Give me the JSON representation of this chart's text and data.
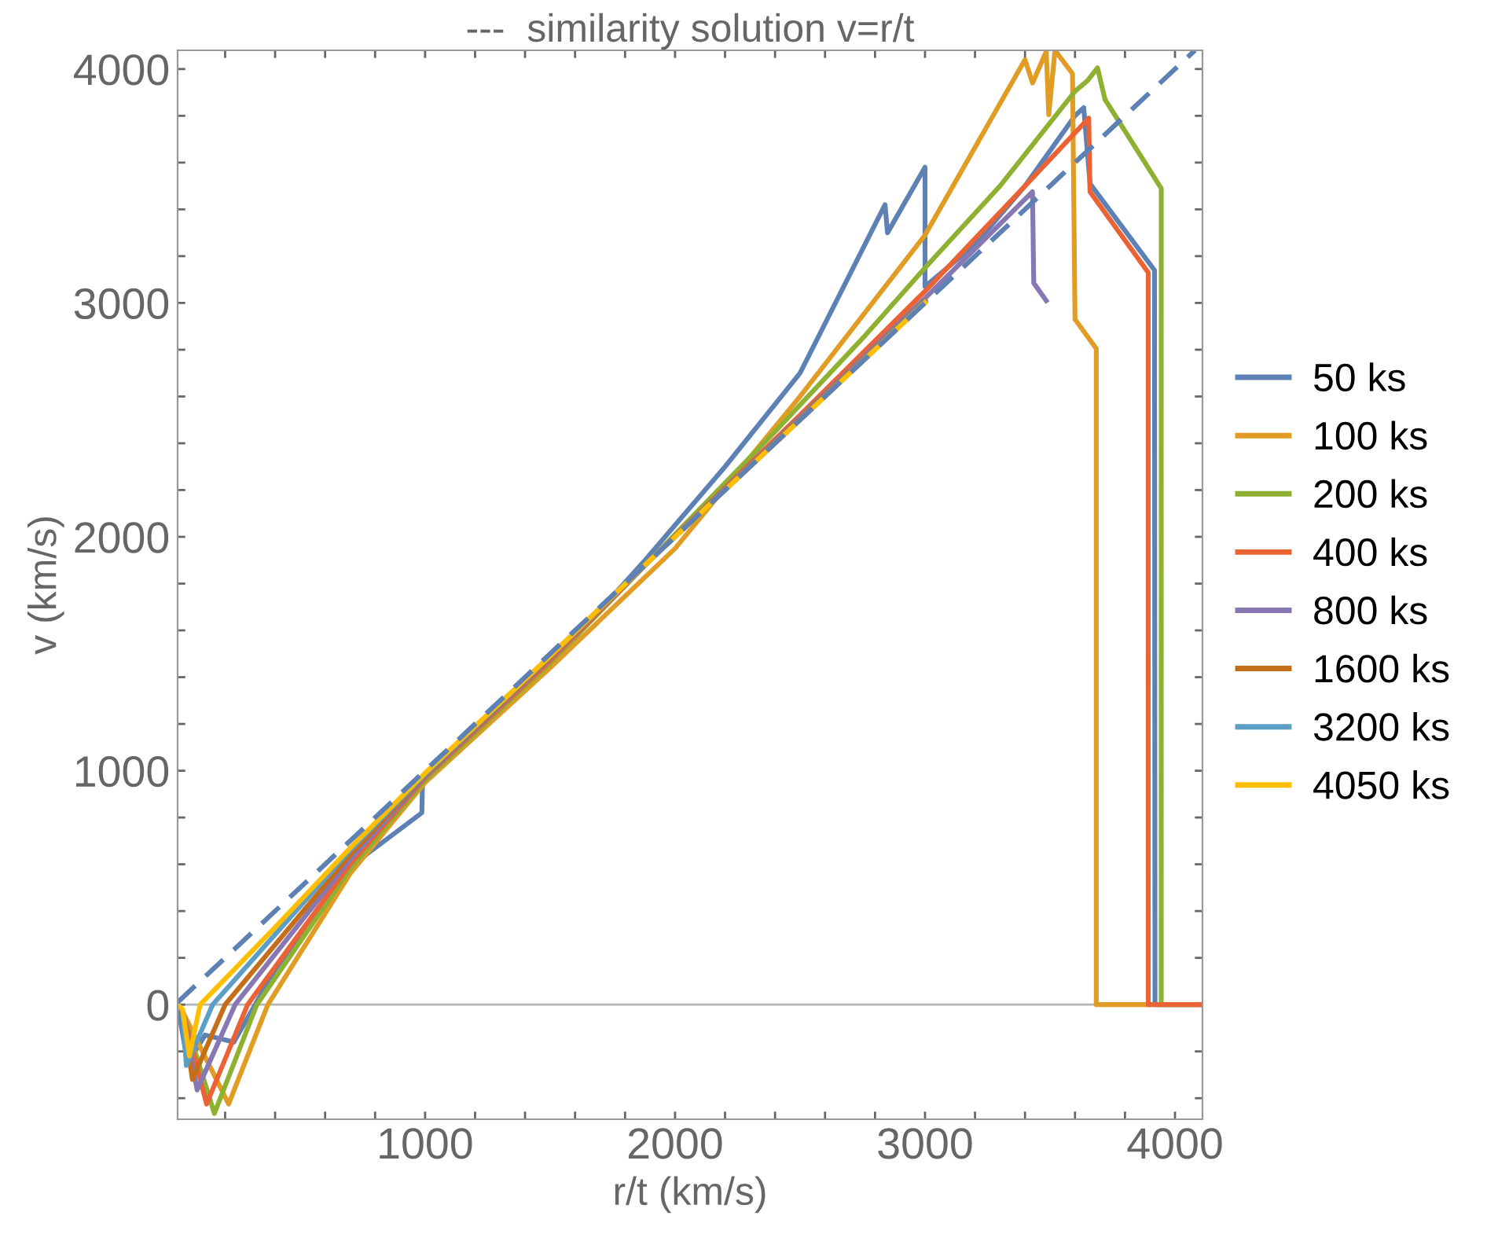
{
  "chart_data": {
    "type": "line",
    "title": "---  similarity solution v=r/t",
    "xlabel": "r/t (km/s)",
    "ylabel": "v (km/s)",
    "xlim": [
      10,
      4110
    ],
    "ylim": [
      -490,
      4080
    ],
    "xticks": [
      {
        "value": 200,
        "label": null
      },
      {
        "value": 400,
        "label": null
      },
      {
        "value": 600,
        "label": null
      },
      {
        "value": 800,
        "label": null
      },
      1000,
      {
        "value": 1200,
        "label": null
      },
      {
        "value": 1400,
        "label": null
      },
      {
        "value": 1600,
        "label": null
      },
      {
        "value": 1800,
        "label": null
      },
      2000,
      {
        "value": 2200,
        "label": null
      },
      {
        "value": 2400,
        "label": null
      },
      {
        "value": 2600,
        "label": null
      },
      {
        "value": 2800,
        "label": null
      },
      3000,
      {
        "value": 3200,
        "label": null
      },
      {
        "value": 3400,
        "label": null
      },
      {
        "value": 3600,
        "label": null
      },
      {
        "value": 3800,
        "label": null
      },
      4000
    ],
    "yticks": [
      {
        "value": -400,
        "label": null
      },
      {
        "value": -200,
        "label": null
      },
      0,
      {
        "value": 200,
        "label": null
      },
      {
        "value": 400,
        "label": null
      },
      {
        "value": 600,
        "label": null
      },
      {
        "value": 800,
        "label": null
      },
      1000,
      {
        "value": 1200,
        "label": null
      },
      {
        "value": 1400,
        "label": null
      },
      {
        "value": 1600,
        "label": null
      },
      {
        "value": 1800,
        "label": null
      },
      2000,
      {
        "value": 2200,
        "label": null
      },
      {
        "value": 2400,
        "label": null
      },
      {
        "value": 2600,
        "label": null
      },
      {
        "value": 2800,
        "label": null
      },
      3000,
      {
        "value": 3200,
        "label": null
      },
      {
        "value": 3400,
        "label": null
      },
      {
        "value": 3600,
        "label": null
      },
      {
        "value": 3800,
        "label": null
      },
      4000
    ],
    "grid": false,
    "legend": "right",
    "marker": "none",
    "ref_lines": [
      {
        "axis": "y",
        "value": 0,
        "color": "#b4b4b4",
        "line_style": "solid"
      }
    ],
    "series": [
      {
        "name": "50 ks",
        "color": "#5e81b5",
        "x": [
          10,
          50,
          120,
          235,
          400,
          700,
          987,
          990,
          1200,
          1500,
          1880,
          2200,
          2500,
          2840,
          2850,
          3000,
          3000,
          3200,
          3400,
          3600,
          3635,
          3660,
          3918,
          3920,
          4110
        ],
        "values": [
          0,
          -250,
          -130,
          -160,
          150,
          590,
          820,
          960,
          1150,
          1450,
          1900,
          2300,
          2700,
          3420,
          3300,
          3580,
          3070,
          3250,
          3500,
          3800,
          3835,
          3510,
          3140,
          0,
          0
        ]
      },
      {
        "name": "100 ks",
        "color": "#e19c24",
        "x": [
          10,
          30,
          214,
          371,
          700,
          1000,
          1500,
          2000,
          2500,
          3000,
          3400,
          3430,
          3485,
          3495,
          3520,
          3590,
          3600,
          3685,
          3685,
          3893
        ],
        "values": [
          0,
          -30,
          -425,
          0,
          560,
          950,
          1440,
          1950,
          2600,
          3290,
          4040,
          3940,
          4075,
          3805,
          4080,
          3980,
          2930,
          2805,
          0,
          0
        ]
      },
      {
        "name": "200 ks",
        "color": "#8fb131",
        "x": [
          10,
          30,
          157,
          327,
          700,
          1000,
          1500,
          1900,
          2400,
          2760,
          3000,
          3300,
          3600,
          3650,
          3690,
          3720,
          3945,
          3945,
          4110
        ],
        "values": [
          0,
          -30,
          -465,
          0,
          580,
          960,
          1460,
          1900,
          2450,
          2860,
          3150,
          3500,
          3905,
          3950,
          4005,
          3870,
          3490,
          0,
          0
        ]
      },
      {
        "name": "400 ks",
        "color": "#eb6235",
        "x": [
          10,
          30,
          126,
          290,
          700,
          1000,
          1500,
          1900,
          2500,
          3000,
          3400,
          3655,
          3660,
          3893,
          3893,
          4110
        ],
        "values": [
          0,
          -30,
          -425,
          0,
          600,
          970,
          1470,
          1900,
          2520,
          3050,
          3500,
          3790,
          3475,
          3130,
          0,
          0
        ]
      },
      {
        "name": "800 ks",
        "color": "#8778b3",
        "x": [
          10,
          30,
          88,
          240,
          700,
          1000,
          1500,
          1900,
          2500,
          3000,
          3430,
          3435,
          3485
        ],
        "values": [
          0,
          -30,
          -365,
          0,
          620,
          975,
          1480,
          1900,
          2510,
          3020,
          3475,
          3085,
          3010
        ]
      },
      {
        "name": "1600 ks",
        "color": "#c56e1a",
        "x": [
          10,
          30,
          69,
          200,
          700,
          1000,
          1500,
          1900,
          2500,
          3000
        ],
        "values": [
          0,
          -30,
          -320,
          0,
          640,
          980,
          1485,
          1900,
          2505,
          3010
        ]
      },
      {
        "name": "3200 ks",
        "color": "#5d9ec7",
        "x": [
          10,
          30,
          45,
          150,
          700,
          1000,
          1500,
          1900,
          2500,
          3000
        ],
        "values": [
          0,
          -30,
          -260,
          0,
          660,
          985,
          1490,
          1900,
          2500,
          3005
        ]
      },
      {
        "name": "4050 ks",
        "color": "#ffbf00",
        "x": [
          10,
          30,
          57,
          100,
          400,
          700,
          1000,
          1500,
          1900,
          2500,
          3000
        ],
        "values": [
          0,
          -20,
          -220,
          0,
          330,
          670,
          990,
          1490,
          1900,
          2500,
          3000
        ]
      },
      {
        "color": "#5e81b5",
        "line_style": "dashed",
        "x": [
          10,
          4080
        ],
        "values": [
          10,
          4080
        ]
      }
    ]
  }
}
